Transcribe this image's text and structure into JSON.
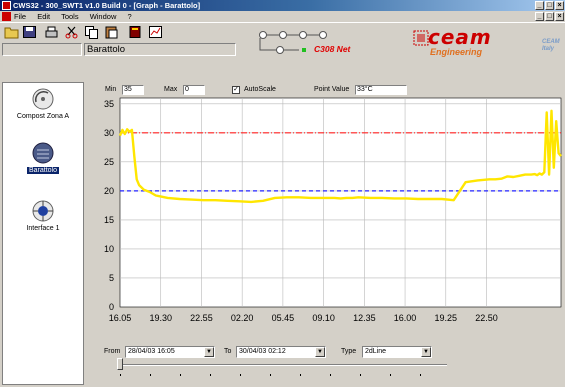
{
  "window": {
    "title": "CWS32 - 300_SWT1 v1.0 Build 0 - [Graph - Barattolo]"
  },
  "menu": {
    "items": [
      "File",
      "Edit",
      "Tools",
      "Window",
      "?"
    ]
  },
  "toolbar": {
    "tools": [
      "folder-open-icon",
      "save-icon",
      "print-icon",
      "cut-icon",
      "copy-icon",
      "paste-icon",
      "book-icon",
      "chart-icon"
    ],
    "current_name": "Barattolo",
    "device_label": "C308 Net"
  },
  "logo": {
    "name": "ceam",
    "subtitle": "Engineering",
    "brand": "CEAM Italy"
  },
  "sidebar": {
    "items": [
      {
        "label": "Compost Zona A",
        "icon": "satellite-dish-icon",
        "selected": false
      },
      {
        "label": "Barattolo",
        "icon": "compost-bin-icon",
        "selected": true
      },
      {
        "label": "Interface 1",
        "icon": "network-interface-icon",
        "selected": false
      }
    ]
  },
  "stats": {
    "min_label": "Min",
    "min_value": "35",
    "max_label": "Max",
    "max_value": "0",
    "autoscale_label": "AutoScale",
    "autoscale_checked": true,
    "point_label": "Point Value",
    "point_value": "33°C"
  },
  "controls": {
    "from_label": "From",
    "from_value": "28/04/03 16:05",
    "to_label": "To",
    "to_value": "30/04/03 02:12",
    "type_label": "Type",
    "type_value": "2dLine"
  },
  "chart_data": {
    "type": "line",
    "x_ticks": [
      "16.05",
      "19.30",
      "22.55",
      "02.20",
      "05.45",
      "09.10",
      "12.35",
      "16.00",
      "19.25",
      "22.50"
    ],
    "ylim": [
      0,
      36
    ],
    "y_ticks": [
      0,
      5,
      10,
      15,
      20,
      25,
      30,
      35
    ],
    "grid": true,
    "reference_lines": [
      {
        "value": 30,
        "color": "#ff2020",
        "style": "dash-dot"
      },
      {
        "value": 20,
        "color": "#2020ff",
        "style": "dashed"
      }
    ],
    "series": [
      {
        "color": "#ffe600",
        "x_hours": [
          0,
          0.2,
          0.4,
          0.6,
          0.8,
          1.0,
          1.2,
          1.4,
          1.6,
          2.0,
          2.5,
          3.0,
          3.5,
          4.0,
          5.0,
          6.0,
          7.0,
          8.0,
          9.0,
          10.0,
          11.0,
          12.0,
          13.0,
          14.0,
          15.0,
          16.0,
          17.0,
          18.0,
          18.5,
          19.0,
          19.5,
          20.0,
          21.0,
          22.0,
          23.0,
          24.0,
          25.0,
          26.0,
          27.0,
          28.0,
          29.0,
          30.0,
          31.0,
          31.5,
          32.0,
          32.5,
          33.0,
          33.5,
          34.0,
          34.5,
          34.8,
          35.0,
          35.2,
          35.4,
          35.6,
          35.8,
          36.0,
          36.2,
          36.4,
          36.6,
          36.8,
          37.0
        ],
        "values": [
          29.5,
          30.5,
          29.8,
          30.6,
          30.2,
          30.5,
          26.0,
          22.0,
          21.0,
          20.2,
          19.8,
          19.2,
          19.0,
          18.8,
          18.6,
          18.5,
          18.4,
          18.4,
          18.3,
          18.2,
          18.1,
          18.3,
          18.8,
          18.9,
          18.9,
          18.8,
          18.8,
          18.8,
          18.7,
          18.8,
          18.8,
          18.9,
          18.8,
          18.8,
          18.7,
          18.7,
          18.6,
          18.6,
          18.6,
          18.4,
          21.5,
          21.8,
          22.0,
          22.0,
          22.1,
          22.5,
          22.4,
          22.6,
          22.8,
          22.8,
          22.9,
          22.7,
          23.0,
          22.8,
          23.2,
          33.5,
          22.8,
          33.8,
          24.0,
          32.0,
          26.5,
          26.0
        ]
      }
    ]
  }
}
